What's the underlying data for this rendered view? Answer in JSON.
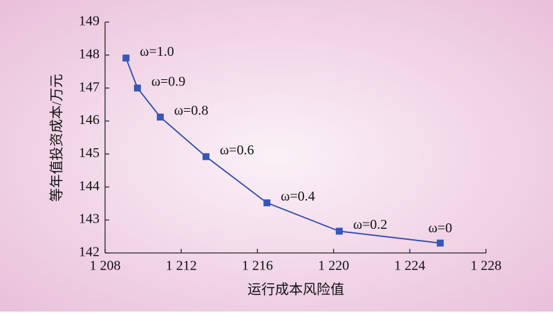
{
  "chart_data": {
    "type": "line",
    "x_label": "运行成本风险值",
    "y_label": "等年值投资成本/万元",
    "x": [
      1209.1,
      1209.7,
      1210.9,
      1213.3,
      1216.5,
      1220.3,
      1225.6
    ],
    "series": [
      {
        "name": "ω",
        "color": "#2f4aa8",
        "values": [
          147.91,
          147.0,
          146.12,
          144.92,
          143.52,
          142.66,
          142.3
        ]
      }
    ],
    "annotations": [
      "ω=1.0",
      "ω=0.9",
      "ω=0.8",
      "ω=0.6",
      "ω=0.4",
      "ω=0.2",
      "ω=0"
    ],
    "xlim": [
      1208,
      1228
    ],
    "xticks": [
      {
        "value": 1208,
        "label": "1 208"
      },
      {
        "value": 1212,
        "label": "1 212"
      },
      {
        "value": 1216,
        "label": "1 216"
      },
      {
        "value": 1220,
        "label": "1 220"
      },
      {
        "value": 1224,
        "label": "1 224"
      },
      {
        "value": 1228,
        "label": "1 228"
      }
    ],
    "ylim": [
      142,
      149
    ],
    "yticks": [
      142,
      143,
      144,
      145,
      146,
      147,
      148,
      149
    ]
  }
}
